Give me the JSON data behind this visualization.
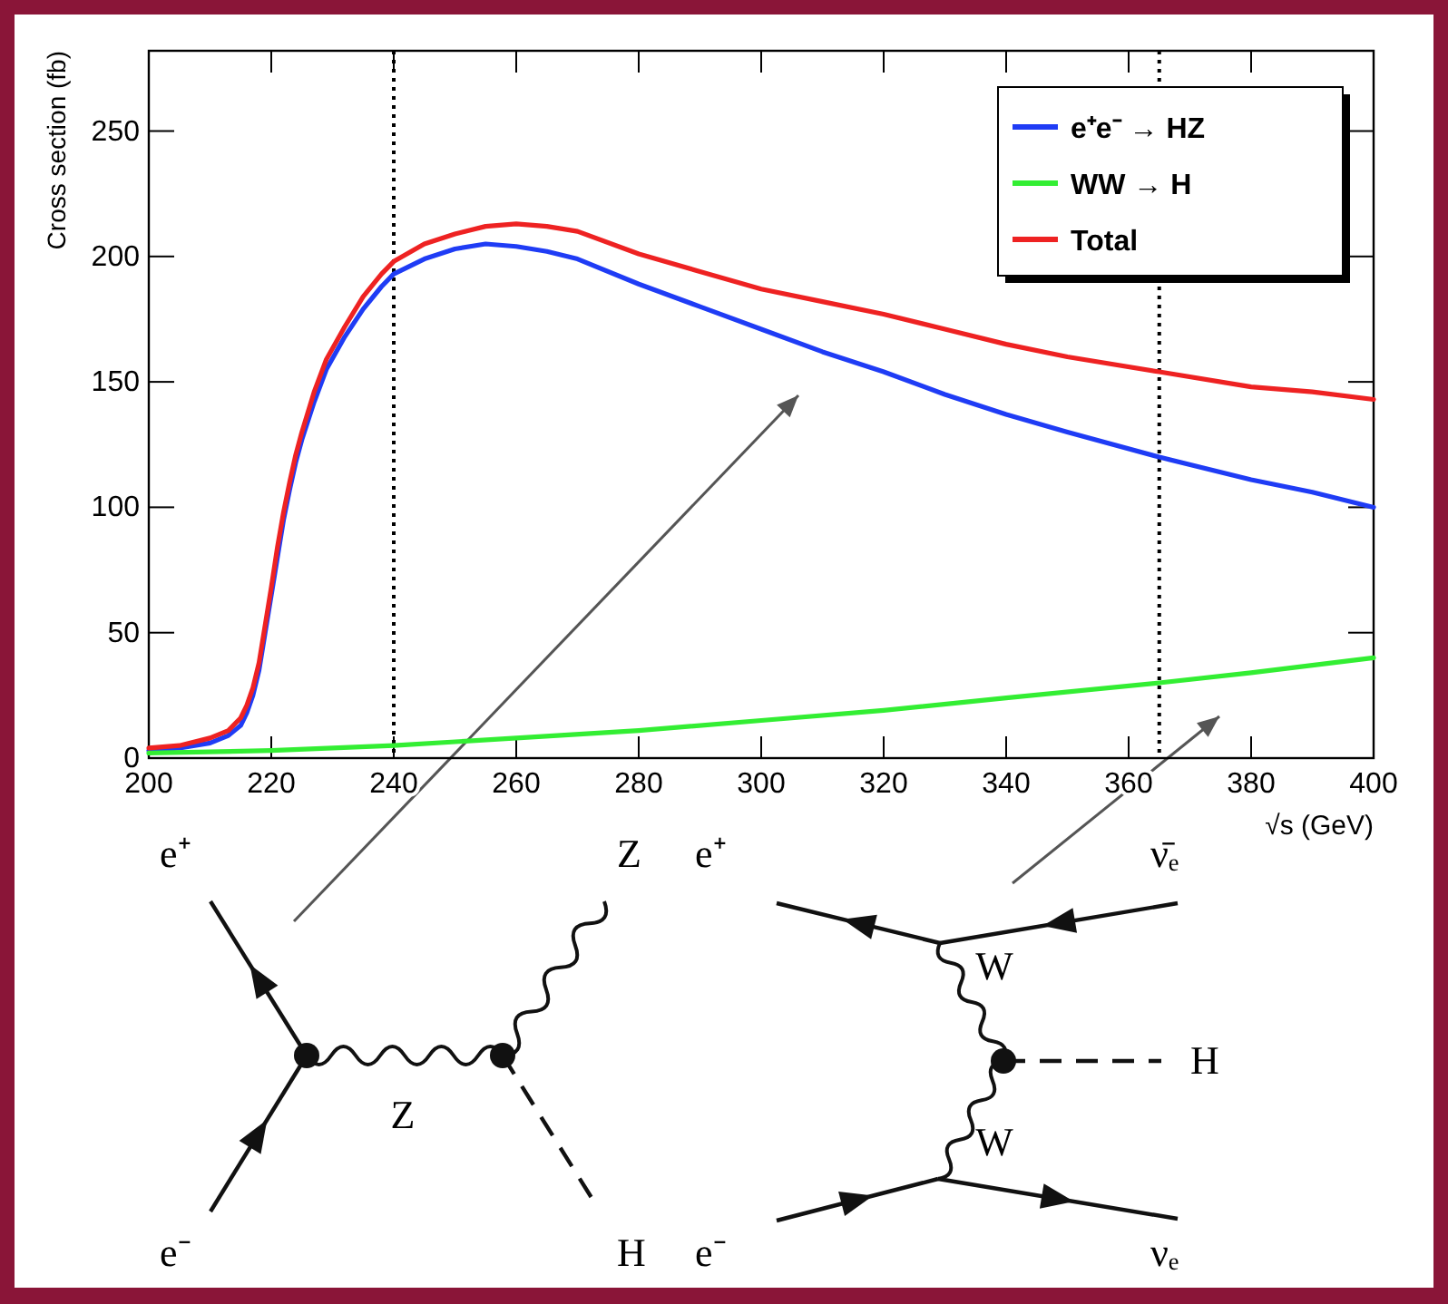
{
  "chart_data": {
    "type": "line",
    "ylabel": "Cross section (fb)",
    "xlabel": "√s (GeV)",
    "xlim": [
      200,
      400
    ],
    "xticks": [
      200,
      220,
      240,
      260,
      280,
      300,
      320,
      340,
      360,
      380,
      400
    ],
    "ylim": [
      0,
      282
    ],
    "yticks": [
      0,
      50,
      100,
      150,
      200,
      250
    ],
    "grid": false,
    "legend": "top right",
    "marker": "none",
    "line_style": "solid",
    "ref_lines": [
      {
        "axis": "x",
        "value": 240,
        "line_style": "dotted",
        "color": "#000000"
      },
      {
        "axis": "x",
        "value": 365,
        "line_style": "dotted",
        "color": "#000000"
      }
    ],
    "series": [
      {
        "name": "e⁺e⁻ → HZ",
        "color": "#1f3cf5",
        "x": [
          200,
          205,
          210,
          213,
          215,
          216,
          217,
          218,
          219,
          220,
          221,
          222,
          223,
          224,
          225,
          227,
          229,
          232,
          235,
          238,
          240,
          245,
          250,
          255,
          260,
          265,
          270,
          280,
          290,
          300,
          310,
          320,
          330,
          340,
          350,
          365,
          380,
          390,
          400
        ],
        "values": [
          3,
          4,
          6,
          9,
          13,
          18,
          25,
          35,
          50,
          65,
          80,
          95,
          107,
          118,
          127,
          142,
          155,
          168,
          179,
          188,
          193,
          199,
          203,
          205,
          204,
          202,
          199,
          189,
          180,
          171,
          162,
          154,
          145,
          137,
          130,
          120,
          111,
          106,
          100
        ]
      },
      {
        "name": "WW → H",
        "color": "#33ee33",
        "x": [
          200,
          220,
          240,
          260,
          280,
          300,
          320,
          340,
          365,
          380,
          400
        ],
        "values": [
          2,
          3,
          5,
          8,
          11,
          15,
          19,
          24,
          30,
          34,
          40
        ]
      },
      {
        "name": "Total",
        "color": "#ee2222",
        "x": [
          200,
          205,
          210,
          213,
          215,
          216,
          217,
          218,
          219,
          220,
          221,
          222,
          223,
          224,
          225,
          227,
          229,
          232,
          235,
          238,
          240,
          245,
          250,
          255,
          260,
          265,
          270,
          280,
          290,
          300,
          310,
          320,
          330,
          340,
          350,
          365,
          380,
          390,
          400
        ],
        "values": [
          4,
          5,
          8,
          11,
          16,
          21,
          28,
          38,
          53,
          68,
          84,
          98,
          110,
          121,
          130,
          146,
          159,
          172,
          184,
          193,
          198,
          205,
          209,
          212,
          213,
          212,
          210,
          201,
          194,
          187,
          182,
          177,
          171,
          165,
          160,
          154,
          148,
          146,
          143
        ]
      }
    ],
    "annotations": [
      "e⁺",
      "e⁻",
      "Z",
      "Z",
      "H",
      "e⁺",
      "e⁻",
      "ν̄ₑ",
      "νₑ",
      "W",
      "W",
      "H"
    ]
  }
}
